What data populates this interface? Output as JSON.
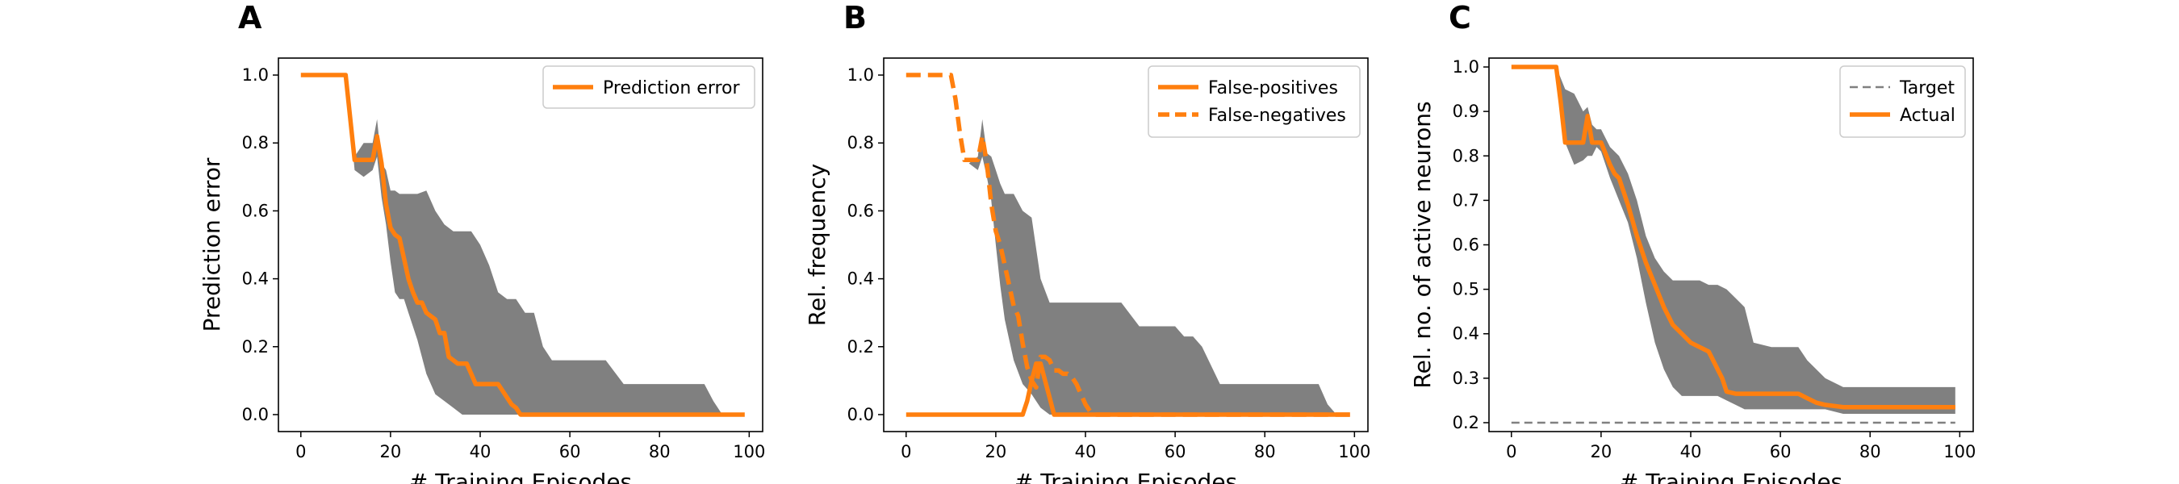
{
  "colors": {
    "orange": "#ff7f0e",
    "band": "#808080",
    "target": "#808080"
  },
  "chart_data": [
    {
      "type": "line",
      "panel": "A",
      "xlabel": "# Training Episodes",
      "ylabel": "Prediction error",
      "xlim": [
        -5,
        103
      ],
      "ylim": [
        -0.05,
        1.05
      ],
      "xticks": [
        0,
        20,
        40,
        60,
        80,
        100
      ],
      "yticks": [
        0.0,
        0.2,
        0.4,
        0.6,
        0.8,
        1.0
      ],
      "ytick_decimals": 1,
      "legend_position": "upper-right",
      "band": {
        "x": [
          10,
          12,
          14,
          16,
          17,
          18,
          19,
          20,
          21,
          22,
          23,
          24,
          26,
          28,
          30,
          32,
          34,
          36,
          38,
          40,
          42,
          44,
          46,
          48,
          50,
          52,
          54,
          56,
          58,
          60,
          64,
          68,
          72,
          76,
          80,
          84,
          88,
          90,
          92,
          94,
          96,
          98
        ],
        "upper": [
          1.0,
          0.76,
          0.8,
          0.8,
          0.87,
          0.74,
          0.72,
          0.66,
          0.66,
          0.65,
          0.65,
          0.65,
          0.65,
          0.66,
          0.6,
          0.56,
          0.54,
          0.54,
          0.54,
          0.5,
          0.44,
          0.36,
          0.34,
          0.34,
          0.3,
          0.3,
          0.2,
          0.16,
          0.16,
          0.16,
          0.16,
          0.16,
          0.09,
          0.09,
          0.09,
          0.09,
          0.09,
          0.09,
          0.04,
          0.0,
          0.0,
          0.0
        ],
        "lower": [
          1.0,
          0.72,
          0.7,
          0.72,
          0.76,
          0.64,
          0.56,
          0.45,
          0.36,
          0.34,
          0.34,
          0.3,
          0.22,
          0.12,
          0.06,
          0.04,
          0.02,
          0.0,
          0.0,
          0.0,
          0.0,
          0.0,
          0.0,
          0.0,
          0.0,
          0.0,
          0.0,
          0.0,
          0.0,
          0.0,
          0.0,
          0.0,
          0.0,
          0.0,
          0.0,
          0.0,
          0.0,
          0.0,
          0.0,
          0.0,
          0.0,
          0.0
        ]
      },
      "series": [
        {
          "name": "Prediction error",
          "style": "solid",
          "x": [
            0,
            10,
            12,
            14,
            16,
            17,
            18,
            19,
            20,
            21,
            22,
            23,
            24,
            25,
            26,
            27,
            28,
            29,
            30,
            31,
            32,
            33,
            34,
            35,
            36,
            37,
            38,
            39,
            40,
            41,
            42,
            43,
            44,
            45,
            46,
            47,
            48,
            49,
            50,
            51,
            52,
            56,
            60,
            70,
            80,
            90,
            99
          ],
          "y": [
            1.0,
            1.0,
            0.75,
            0.75,
            0.75,
            0.82,
            0.74,
            0.62,
            0.55,
            0.53,
            0.52,
            0.46,
            0.4,
            0.36,
            0.33,
            0.33,
            0.3,
            0.29,
            0.28,
            0.24,
            0.24,
            0.17,
            0.16,
            0.15,
            0.15,
            0.15,
            0.12,
            0.09,
            0.09,
            0.09,
            0.09,
            0.09,
            0.09,
            0.07,
            0.05,
            0.03,
            0.02,
            0.0,
            0.0,
            0.0,
            0.0,
            0.0,
            0.0,
            0.0,
            0.0,
            0.0,
            0.0
          ]
        }
      ]
    },
    {
      "type": "line",
      "panel": "B",
      "xlabel": "# Training Episodes",
      "ylabel": "Rel. frequency",
      "xlim": [
        -5,
        103
      ],
      "ylim": [
        -0.05,
        1.05
      ],
      "xticks": [
        0,
        20,
        40,
        60,
        80,
        100
      ],
      "yticks": [
        0.0,
        0.2,
        0.4,
        0.6,
        0.8,
        1.0
      ],
      "ytick_decimals": 1,
      "legend_position": "upper-right",
      "band": {
        "x": [
          14,
          16,
          17,
          18,
          19,
          20,
          21,
          22,
          24,
          26,
          28,
          30,
          32,
          34,
          36,
          38,
          40,
          44,
          48,
          52,
          54,
          56,
          58,
          60,
          62,
          64,
          66,
          70,
          80,
          88,
          90,
          92,
          94,
          96
        ],
        "upper": [
          0.74,
          0.76,
          0.87,
          0.77,
          0.76,
          0.72,
          0.68,
          0.65,
          0.65,
          0.6,
          0.58,
          0.4,
          0.33,
          0.33,
          0.33,
          0.33,
          0.33,
          0.33,
          0.33,
          0.26,
          0.26,
          0.26,
          0.26,
          0.26,
          0.23,
          0.23,
          0.2,
          0.09,
          0.09,
          0.09,
          0.09,
          0.09,
          0.03,
          0.0
        ],
        "lower": [
          0.74,
          0.72,
          0.76,
          0.7,
          0.63,
          0.5,
          0.38,
          0.28,
          0.16,
          0.09,
          0.06,
          0.02,
          0.0,
          0.0,
          0.0,
          0.0,
          0.0,
          0.0,
          0.0,
          0.0,
          0.0,
          0.0,
          0.0,
          0.0,
          0.0,
          0.0,
          0.0,
          0.0,
          0.0,
          0.0,
          0.0,
          0.0,
          0.0,
          0.0
        ]
      },
      "series": [
        {
          "name": "False-positives",
          "style": "solid",
          "x": [
            0,
            10,
            20,
            24,
            26,
            27,
            28,
            29,
            30,
            31,
            32,
            33,
            34,
            36,
            40,
            50,
            60,
            70,
            80,
            90,
            99
          ],
          "y": [
            0.0,
            0.0,
            0.0,
            0.0,
            0.0,
            0.04,
            0.1,
            0.15,
            0.15,
            0.1,
            0.05,
            0.0,
            0.0,
            0.0,
            0.0,
            0.0,
            0.0,
            0.0,
            0.0,
            0.0,
            0.0
          ]
        },
        {
          "name": "False-negatives",
          "style": "dashed",
          "x": [
            0,
            10,
            11,
            12,
            13,
            14,
            16,
            17,
            18,
            19,
            20,
            21,
            22,
            23,
            24,
            25,
            26,
            27,
            28,
            29,
            30,
            31,
            32,
            33,
            34,
            35,
            36,
            37,
            38,
            39,
            40,
            41,
            42,
            50,
            60,
            70,
            80,
            90,
            99
          ],
          "y": [
            1.0,
            1.0,
            0.93,
            0.83,
            0.75,
            0.75,
            0.75,
            0.82,
            0.74,
            0.62,
            0.54,
            0.5,
            0.44,
            0.38,
            0.32,
            0.29,
            0.21,
            0.14,
            0.1,
            0.08,
            0.17,
            0.17,
            0.16,
            0.13,
            0.13,
            0.12,
            0.12,
            0.11,
            0.09,
            0.06,
            0.03,
            0.01,
            0.0,
            0.0,
            0.0,
            0.0,
            0.0,
            0.0,
            0.0
          ]
        }
      ]
    },
    {
      "type": "line",
      "panel": "C",
      "xlabel": "# Training Episodes",
      "ylabel": "Rel. no. of active neurons",
      "xlim": [
        -5,
        103
      ],
      "ylim": [
        0.18,
        1.02
      ],
      "xticks": [
        0,
        20,
        40,
        60,
        80,
        100
      ],
      "yticks": [
        0.2,
        0.3,
        0.4,
        0.5,
        0.6,
        0.7,
        0.8,
        0.9,
        1.0
      ],
      "ytick_decimals": 1,
      "legend_position": "upper-right",
      "band": {
        "x": [
          10,
          12,
          14,
          16,
          17,
          18,
          19,
          20,
          22,
          24,
          26,
          28,
          30,
          32,
          34,
          36,
          38,
          40,
          42,
          44,
          46,
          48,
          50,
          52,
          54,
          58,
          62,
          64,
          66,
          70,
          74,
          80,
          86,
          90,
          96,
          99
        ],
        "upper": [
          1.0,
          0.95,
          0.94,
          0.9,
          0.91,
          0.87,
          0.86,
          0.86,
          0.82,
          0.8,
          0.76,
          0.7,
          0.62,
          0.57,
          0.54,
          0.52,
          0.52,
          0.52,
          0.52,
          0.51,
          0.51,
          0.5,
          0.48,
          0.46,
          0.38,
          0.37,
          0.37,
          0.37,
          0.34,
          0.3,
          0.28,
          0.28,
          0.28,
          0.28,
          0.28,
          0.28
        ],
        "lower": [
          1.0,
          0.83,
          0.78,
          0.79,
          0.8,
          0.8,
          0.82,
          0.81,
          0.75,
          0.7,
          0.65,
          0.57,
          0.47,
          0.38,
          0.32,
          0.28,
          0.26,
          0.26,
          0.26,
          0.26,
          0.26,
          0.25,
          0.24,
          0.23,
          0.23,
          0.23,
          0.23,
          0.23,
          0.23,
          0.23,
          0.22,
          0.22,
          0.22,
          0.22,
          0.22,
          0.22
        ]
      },
      "series": [
        {
          "name": "Target",
          "style": "dashed-thin",
          "x": [
            0,
            99
          ],
          "y": [
            0.2,
            0.2
          ]
        },
        {
          "name": "Actual",
          "style": "solid",
          "x": [
            0,
            10,
            11,
            12,
            14,
            16,
            17,
            18,
            20,
            22,
            23,
            24,
            25,
            26,
            28,
            30,
            32,
            34,
            36,
            38,
            40,
            42,
            44,
            45,
            46,
            47,
            48,
            50,
            52,
            56,
            60,
            64,
            66,
            68,
            70,
            74,
            80,
            86,
            90,
            96,
            99
          ],
          "y": [
            1.0,
            1.0,
            0.92,
            0.83,
            0.83,
            0.83,
            0.89,
            0.83,
            0.83,
            0.78,
            0.76,
            0.75,
            0.72,
            0.69,
            0.62,
            0.56,
            0.51,
            0.46,
            0.42,
            0.4,
            0.38,
            0.37,
            0.36,
            0.34,
            0.32,
            0.3,
            0.27,
            0.265,
            0.265,
            0.265,
            0.265,
            0.265,
            0.255,
            0.245,
            0.24,
            0.235,
            0.235,
            0.235,
            0.235,
            0.235,
            0.235
          ]
        }
      ]
    }
  ]
}
